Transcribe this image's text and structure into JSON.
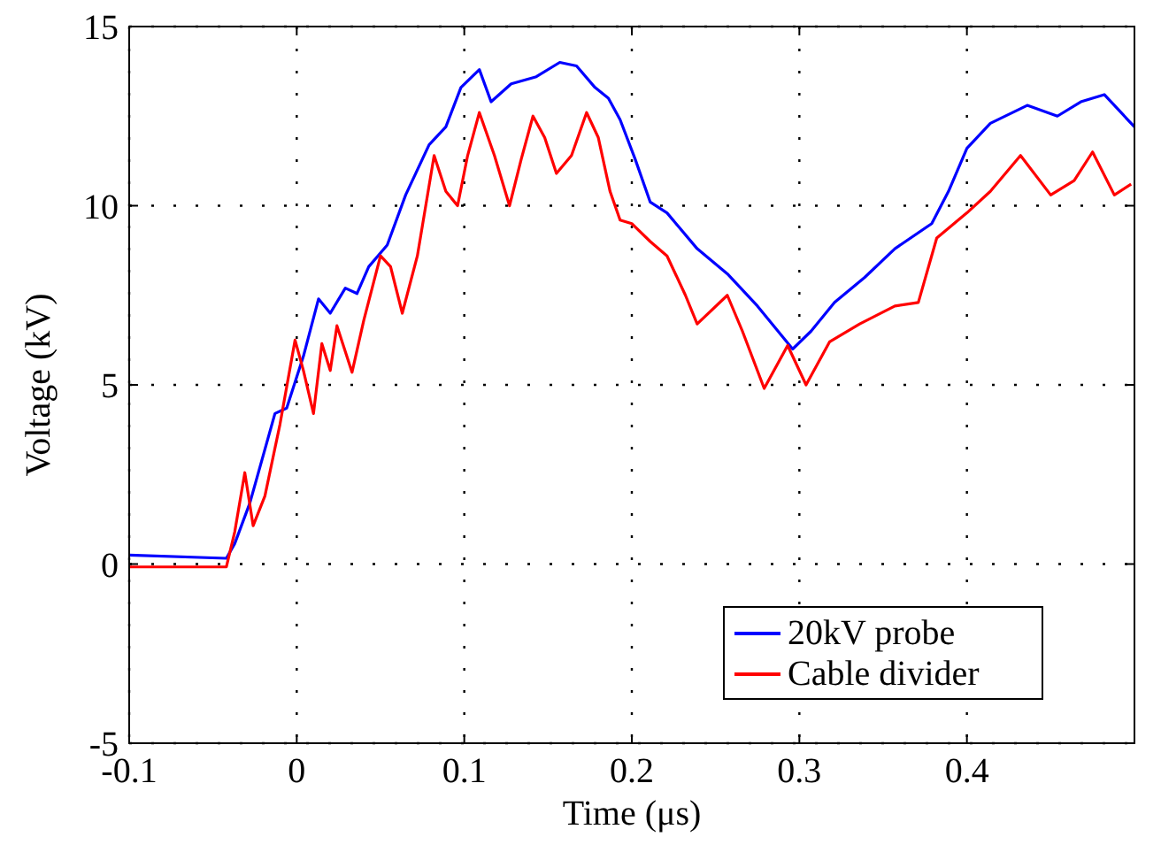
{
  "chart_data": {
    "type": "line",
    "xlabel": "Time (μs)",
    "ylabel": "Voltage (kV)",
    "xlim": [
      -0.1,
      0.5
    ],
    "ylim": [
      -5,
      15
    ],
    "xticks": [
      -0.1,
      0,
      0.1,
      0.2,
      0.3,
      0.4
    ],
    "yticks": [
      -5,
      0,
      5,
      10,
      15
    ],
    "grid": true,
    "legend": "bottom right",
    "line_style": "solid",
    "series": [
      {
        "name": "20kV probe",
        "color": "#0000ff",
        "x": [
          -0.1,
          -0.042,
          -0.037,
          -0.028,
          -0.013,
          -0.006,
          0.004,
          0.013,
          0.02,
          0.029,
          0.036,
          0.043,
          0.054,
          0.065,
          0.079,
          0.089,
          0.098,
          0.109,
          0.116,
          0.128,
          0.143,
          0.157,
          0.167,
          0.178,
          0.186,
          0.193,
          0.202,
          0.211,
          0.221,
          0.239,
          0.257,
          0.275,
          0.296,
          0.307,
          0.321,
          0.339,
          0.357,
          0.379,
          0.389,
          0.4,
          0.414,
          0.436,
          0.454,
          0.468,
          0.482,
          0.496,
          0.5
        ],
        "values": [
          0.25,
          0.16,
          0.57,
          1.7,
          4.2,
          4.35,
          5.8,
          7.4,
          7.0,
          7.7,
          7.55,
          8.3,
          8.9,
          10.3,
          11.7,
          12.2,
          13.3,
          13.8,
          12.9,
          13.4,
          13.6,
          14.0,
          13.9,
          13.3,
          13.0,
          12.4,
          11.3,
          10.1,
          9.8,
          8.8,
          8.1,
          7.2,
          6.0,
          6.5,
          7.3,
          8.0,
          8.8,
          9.5,
          10.4,
          11.6,
          12.3,
          12.8,
          12.5,
          12.9,
          13.1,
          12.4,
          12.2
        ]
      },
      {
        "name": "Cable divider",
        "color": "#ff0000",
        "x": [
          -0.1,
          -0.042,
          -0.037,
          -0.031,
          -0.026,
          -0.019,
          -0.01,
          -0.001,
          0.004,
          0.01,
          0.015,
          0.02,
          0.024,
          0.033,
          0.04,
          0.05,
          0.056,
          0.063,
          0.072,
          0.082,
          0.089,
          0.096,
          0.102,
          0.109,
          0.118,
          0.127,
          0.134,
          0.141,
          0.148,
          0.155,
          0.164,
          0.173,
          0.18,
          0.187,
          0.193,
          0.2,
          0.211,
          0.221,
          0.232,
          0.239,
          0.257,
          0.266,
          0.279,
          0.293,
          0.304,
          0.318,
          0.336,
          0.357,
          0.371,
          0.382,
          0.4,
          0.414,
          0.432,
          0.45,
          0.464,
          0.475,
          0.488,
          0.498
        ],
        "values": [
          -0.08,
          -0.08,
          0.9,
          2.55,
          1.07,
          1.9,
          3.9,
          6.25,
          5.4,
          4.2,
          6.15,
          5.4,
          6.65,
          5.35,
          6.8,
          8.6,
          8.3,
          7.0,
          8.6,
          11.4,
          10.4,
          10.0,
          11.4,
          12.6,
          11.4,
          10.0,
          11.3,
          12.5,
          11.9,
          10.9,
          11.4,
          12.6,
          11.9,
          10.4,
          9.6,
          9.5,
          9.0,
          8.6,
          7.5,
          6.7,
          7.5,
          6.5,
          4.9,
          6.1,
          5.0,
          6.2,
          6.7,
          7.2,
          7.3,
          9.1,
          9.8,
          10.4,
          11.4,
          10.3,
          10.7,
          11.5,
          10.3,
          10.6
        ]
      }
    ]
  }
}
